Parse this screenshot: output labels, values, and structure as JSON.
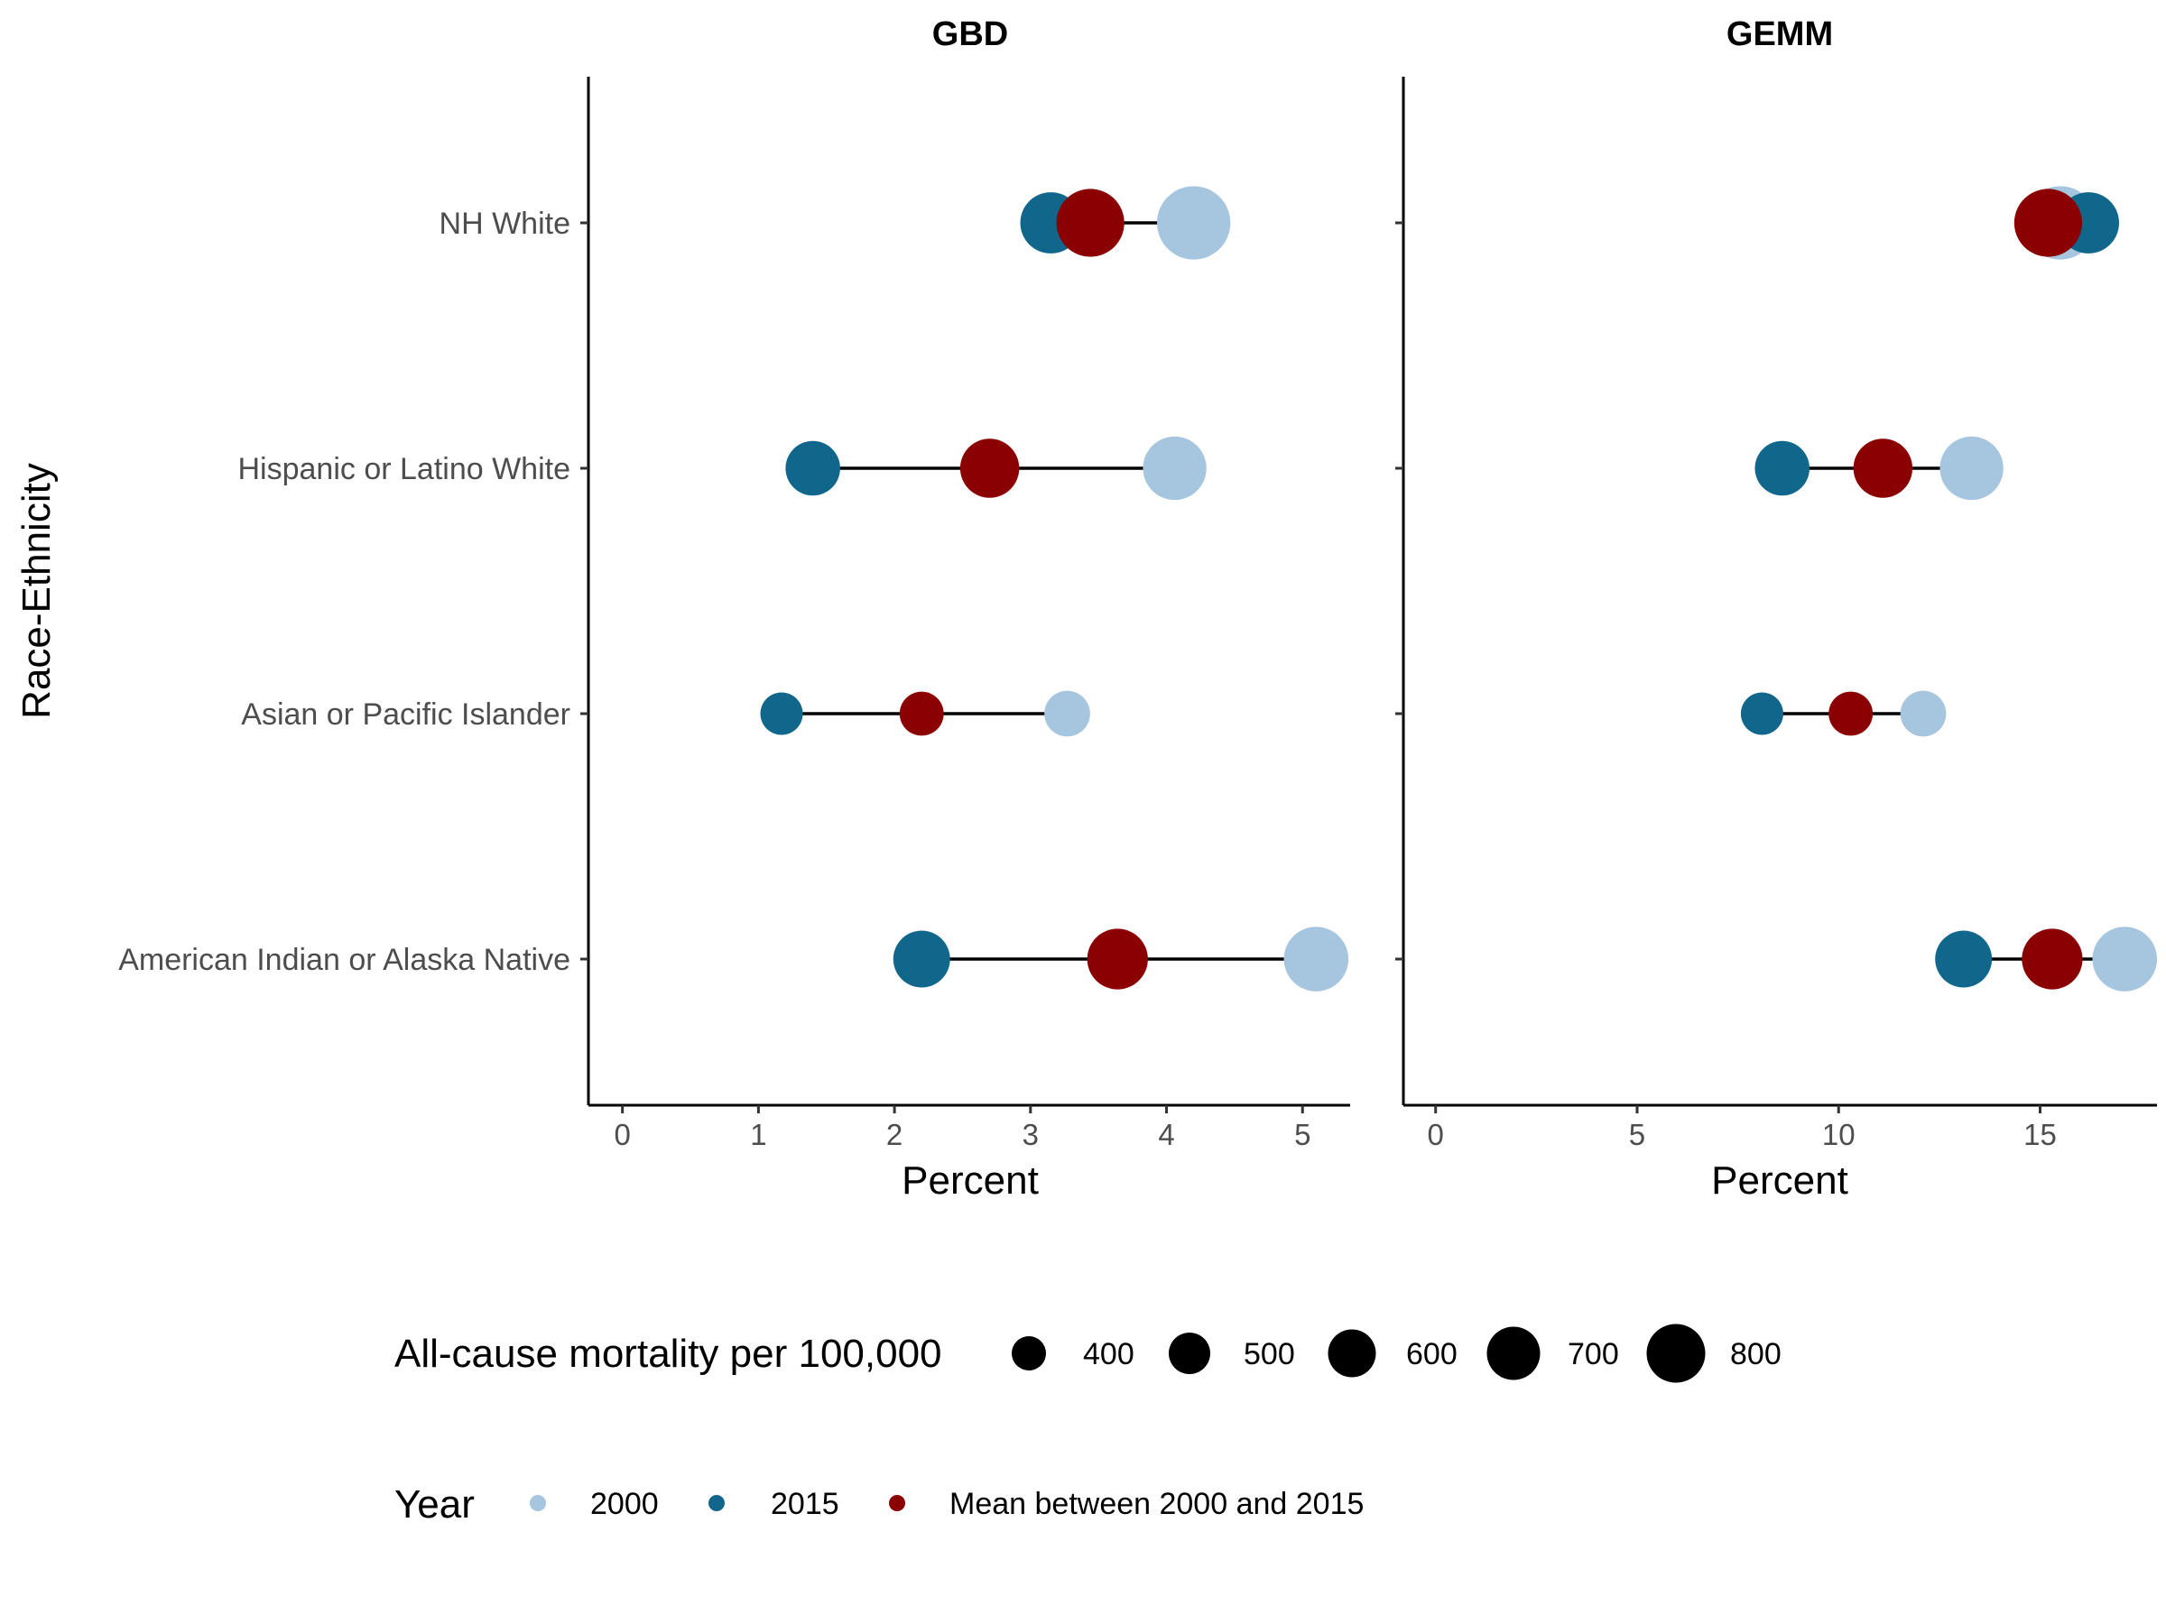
{
  "chart_data": {
    "type": "dot-range",
    "y_axis_label": "Race-Ethnicity",
    "categories": [
      "NH White",
      "Hispanic or Latino White",
      "Asian or Pacific Islander",
      "American Indian or Alaska Native"
    ],
    "panels": [
      {
        "title": "GBD",
        "xlabel": "Percent",
        "xlim": [
          -0.25,
          5.35
        ],
        "xticks": [
          0,
          1,
          2,
          3,
          4,
          5
        ],
        "points": {
          "y2000": [
            4.2,
            4.06,
            3.27,
            5.1
          ],
          "y2015": [
            3.15,
            1.4,
            1.17,
            2.2
          ],
          "mean": [
            3.44,
            2.7,
            2.2,
            3.64
          ]
        },
        "mortality": {
          "y2000": [
            770,
            680,
            520,
            690
          ],
          "y2015": [
            660,
            600,
            490,
            620
          ],
          "mean": [
            720,
            640,
            505,
            655
          ]
        }
      },
      {
        "title": "GEMM",
        "xlabel": "Percent",
        "xlim": [
          -0.8,
          17.9
        ],
        "xticks": [
          0,
          5,
          10,
          15
        ],
        "points": {
          "y2000": [
            15.5,
            13.3,
            12.1,
            17.1
          ],
          "y2015": [
            16.2,
            8.6,
            8.1,
            13.1
          ],
          "mean": [
            15.2,
            11.1,
            10.3,
            15.3
          ]
        },
        "mortality": {
          "y2000": [
            770,
            680,
            520,
            690
          ],
          "y2015": [
            660,
            600,
            490,
            620
          ],
          "mean": [
            720,
            640,
            505,
            655
          ]
        }
      }
    ],
    "legend_size": {
      "title": "All-cause mortality per 100,000",
      "values": [
        400,
        500,
        600,
        700,
        800
      ],
      "labels": [
        "400",
        "500",
        "600",
        "700",
        "800"
      ]
    },
    "legend_year": {
      "title": "Year",
      "labels": [
        "2000",
        "2015",
        "Mean between 2000 and 2015"
      ]
    },
    "colors": {
      "y2000": "#a6c5de",
      "y2015": "#11668c",
      "mean": "#8b0000",
      "legend_size_dot": "#000000"
    },
    "grid": false,
    "legend_placement": "bottom"
  }
}
